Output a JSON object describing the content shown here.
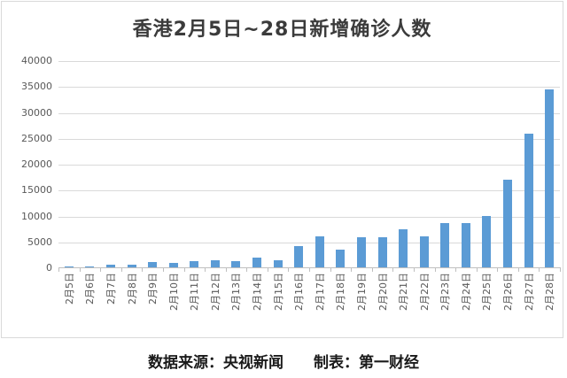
{
  "chart": {
    "bar_color": "#5b9bd5",
    "gridline_color": "#d9d9d9",
    "axis_color": "#bfbfbf",
    "tick_label_color": "#595959",
    "title_color": "#3b3b3b"
  },
  "caption": {
    "source": "数据来源：央视新闻",
    "maker": "制表：第一财经"
  },
  "chart_data": {
    "type": "bar",
    "title": "香港2月5日~28日新增确诊人数",
    "categories": [
      "2月5日",
      "2月6日",
      "2月7日",
      "2月8日",
      "2月9日",
      "2月10日",
      "2月11日",
      "2月12日",
      "2月13日",
      "2月14日",
      "2月15日",
      "2月16日",
      "2月17日",
      "2月18日",
      "2月19日",
      "2月20日",
      "2月21日",
      "2月22日",
      "2月23日",
      "2月24日",
      "2月25日",
      "2月26日",
      "2月27日",
      "2月28日"
    ],
    "values": [
      351,
      342,
      614,
      625,
      1161,
      986,
      1325,
      1514,
      1347,
      2071,
      1619,
      4285,
      6116,
      3629,
      6063,
      6067,
      7533,
      6211,
      8674,
      8798,
      10010,
      17063,
      26026,
      34466
    ],
    "xlabel": "",
    "ylabel": "",
    "ylim": [
      0,
      40000
    ],
    "ytick_step": 5000,
    "yticklabels": [
      "0",
      "5000",
      "10000",
      "15000",
      "20000",
      "25000",
      "30000",
      "35000",
      "40000"
    ],
    "grid": true,
    "legend_position": "none"
  }
}
